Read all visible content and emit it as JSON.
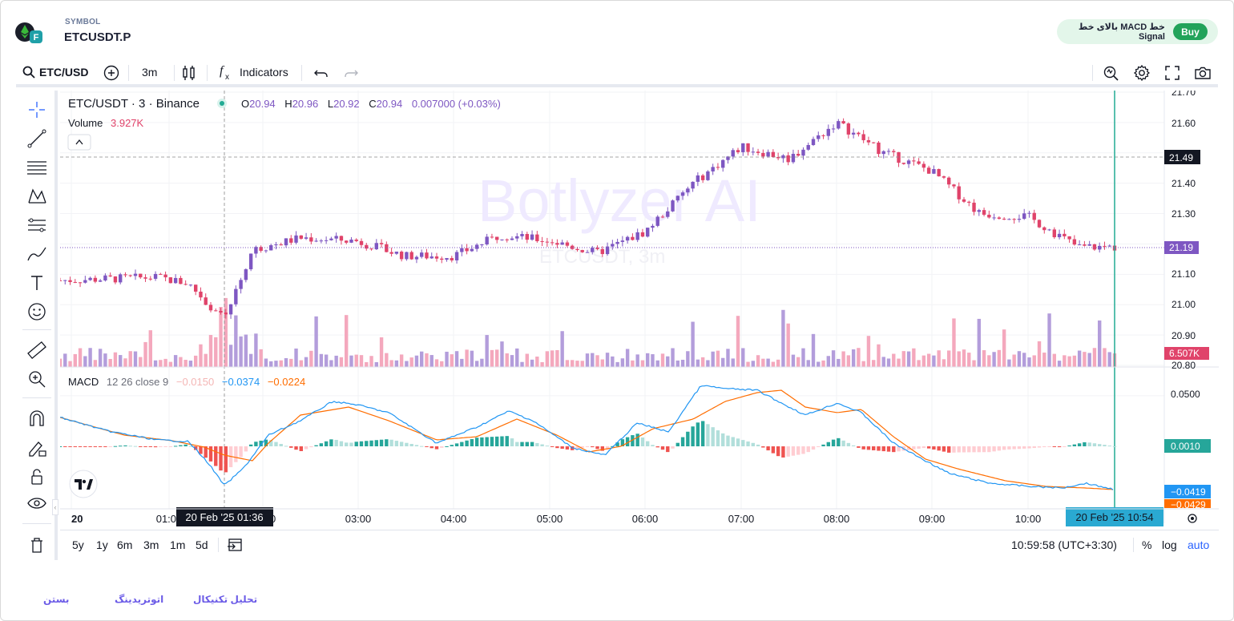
{
  "header": {
    "symbol_caption": "SYMBOL",
    "symbol_name": "ETCUSDT.P",
    "signal_text": "خط MACD بالای خط Signal",
    "buy_label": "Buy"
  },
  "toolbar": {
    "symbol": "ETC/USD",
    "interval": "3m",
    "indicators_label": "Indicators",
    "icons": [
      "search-icon",
      "add-symbol-icon",
      "candles-icon",
      "fx-icon",
      "undo-icon",
      "redo-icon",
      "alert-icon",
      "settings-icon",
      "fullscreen-icon",
      "camera-icon"
    ]
  },
  "left_tools": [
    "crosshair-icon",
    "trendline-icon",
    "fib-icon",
    "pattern-icon",
    "projection-icon",
    "brush-icon",
    "text-icon",
    "emoji-icon",
    "ruler-icon",
    "zoom-in-icon",
    "magnet-icon",
    "lock-drawings-icon",
    "lock-icon",
    "eye-icon",
    "trash-icon"
  ],
  "legend": {
    "title": "ETC/USDT · 3 · Binance",
    "o_label": "O",
    "o": "20.94",
    "h_label": "H",
    "h": "20.96",
    "l_label": "L",
    "l": "20.92",
    "c_label": "C",
    "c": "20.94",
    "change": "0.007000 (+0.03%)",
    "volume_label": "Volume",
    "volume_value": "3.927K"
  },
  "watermark": {
    "brand": "Botlyzer AI",
    "symbol": "ETCUSDT, 3m"
  },
  "price_axis": {
    "labels": [
      "21.70",
      "21.60",
      "21.49",
      "21.40",
      "21.30",
      "21.19",
      "21.10",
      "21.00",
      "20.90",
      "6.507K",
      "20.80"
    ],
    "current_price": "21.19",
    "crosshair_price": "21.49",
    "volume_tag": "6.507K"
  },
  "macd": {
    "label": "MACD",
    "params": "12 26 close 9",
    "hist": "−0.0150",
    "macd": "−0.0374",
    "signal": "−0.0224",
    "axis": [
      "0.0500",
      "0.0010",
      "−0.0419",
      "−0.0429"
    ]
  },
  "time_axis": {
    "labels": [
      "20",
      "01:00",
      "02:00",
      "03:00",
      "04:00",
      "05:00",
      "06:00",
      "07:00",
      "08:00",
      "09:00",
      "10:00"
    ],
    "crosshair_label": "20 Feb '25   01:36",
    "last_label": "20 Feb '25   10:54"
  },
  "bottom_bar": {
    "ranges": [
      "5y",
      "1y",
      "6m",
      "3m",
      "1m",
      "5d"
    ],
    "clock": "10:59:58 (UTC+3:30)",
    "percent": "%",
    "log": "log",
    "auto": "auto"
  },
  "footer": {
    "close": "بستن",
    "autotrade": "اتوتریدینگ",
    "analysis": "تحلیل تکنیکال"
  },
  "colors": {
    "up": "#7e57c2",
    "down": "#e0436a",
    "macd_line": "#2196f3",
    "signal_line": "#ff6d00",
    "hist_up": "#26a69a",
    "hist_down": "#ef5350",
    "accent": "#22ab94"
  },
  "chart_data": {
    "type": "candlestick",
    "price_range": [
      20.8,
      21.7
    ],
    "series": [
      {
        "name": "Price key points",
        "x": [
          "00:45",
          "01:10",
          "01:20",
          "01:36",
          "02:00",
          "02:30",
          "03:00",
          "03:30",
          "04:00",
          "04:30",
          "05:00",
          "05:30",
          "06:00",
          "06:30",
          "07:00",
          "07:30",
          "08:00",
          "08:30",
          "09:00",
          "09:30",
          "10:00",
          "10:30",
          "10:54"
        ],
        "values": [
          21.08,
          21.09,
          21.07,
          20.95,
          21.18,
          21.22,
          21.21,
          21.16,
          21.16,
          21.23,
          21.21,
          21.17,
          21.24,
          21.4,
          21.52,
          21.48,
          21.6,
          21.5,
          21.44,
          21.3,
          21.29,
          21.19,
          21.19
        ]
      }
    ]
  }
}
